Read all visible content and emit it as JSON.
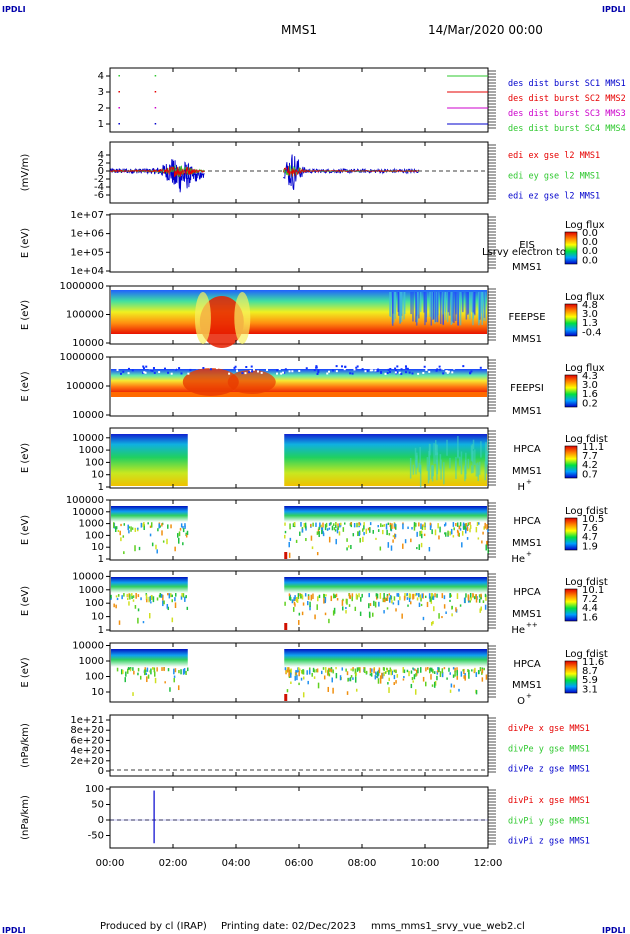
{
  "header": {
    "corner_label": "IPDLI",
    "spacecraft": "MMS1",
    "datetime": "14/Mar/2020 00:00"
  },
  "footer": {
    "corner_label": "IPDLI",
    "produced_by": "Produced by cl (IRAP)",
    "printing_date": "Printing date: 02/Dec/2023",
    "script": "mms_mms1_srvy_vue_web2.cl"
  },
  "colors": {
    "red": "#e60000",
    "green": "#2ec82e",
    "blue": "#0000cc",
    "magenta": "#cc00cc",
    "title_blue": "#0000aa"
  },
  "chart_data": {
    "type": "multi-panel time series and spectrograms",
    "x_axis": {
      "ticks": [
        "00:00",
        "02:00",
        "04:00",
        "06:00",
        "08:00",
        "10:00",
        "12:00"
      ],
      "range_hours": [
        0,
        12
      ]
    },
    "panels": [
      {
        "id": "burst",
        "ylabel": "",
        "yticks": [
          "1",
          "2",
          "3",
          "4"
        ],
        "ylim": [
          0.5,
          4.5
        ],
        "legend": [
          {
            "label": "des dist burst SC1 MMS1",
            "color": "#0000cc",
            "value": 1
          },
          {
            "label": "des dist burst SC2 MMS2",
            "color": "#e60000",
            "value": 3
          },
          {
            "label": "des dist burst SC3 MMS3",
            "color": "#cc00cc",
            "value": 2
          },
          {
            "label": "des dist burst SC4 MMS4",
            "color": "#2ec82e",
            "value": 4
          }
        ],
        "burst_times_hours": [
          0.3,
          1.45
        ],
        "series_tail_from_hours": 10.7
      },
      {
        "id": "edi",
        "ylabel": "(mV/m)",
        "yticks": [
          "-6",
          "-4",
          "-2",
          "0",
          "2",
          "4"
        ],
        "ylim": [
          -6,
          5
        ],
        "legend": [
          {
            "label": "edi ex gse l2 MMS1",
            "color": "#e60000"
          },
          {
            "label": "edi ey gse l2 MMS1",
            "color": "#2ec82e"
          },
          {
            "label": "edi ez gse l2 MMS1",
            "color": "#0000cc"
          }
        ],
        "active_intervals_hours": [
          [
            0,
            3.0
          ],
          [
            5.5,
            9.8
          ]
        ]
      },
      {
        "id": "eis",
        "ylabel": "E (eV)",
        "yticks": [
          "1e+04",
          "1e+05",
          "1e+06",
          "1e+07"
        ],
        "ylim": [
          "1e+04",
          "1e+07"
        ],
        "instrument": [
          "EIS",
          "MMS1"
        ],
        "overlay_text": "Lsrvy electron to",
        "colorbar": {
          "title": "Log flux",
          "ticks": [
            "0.0",
            "0.0",
            "0.0",
            "0.0"
          ]
        }
      },
      {
        "id": "feepse",
        "ylabel": "E (eV)",
        "yticks": [
          "10000",
          "100000",
          "1000000"
        ],
        "instrument": [
          "FEEPSE",
          "MMS1"
        ],
        "colorbar": {
          "title": "Log flux",
          "ticks": [
            "4.8",
            "3.0",
            "1.3",
            "-0.4"
          ]
        }
      },
      {
        "id": "feepsi",
        "ylabel": "E (eV)",
        "yticks": [
          "10000",
          "100000",
          "1000000"
        ],
        "instrument": [
          "FEEPSI",
          "MMS1"
        ],
        "colorbar": {
          "title": "Log flux",
          "ticks": [
            "4.3",
            "3.0",
            "1.6",
            "0.2"
          ]
        }
      },
      {
        "id": "hpca_h",
        "ylabel": "E (eV)",
        "yticks": [
          "1",
          "10",
          "100",
          "1000",
          "10000"
        ],
        "instrument": [
          "HPCA",
          "MMS1",
          "H",
          "+"
        ],
        "colorbar": {
          "title": "Log fdist",
          "ticks": [
            "11.1",
            "7.7",
            "4.2",
            "0.7"
          ]
        },
        "data_gap_hours": [
          2.5,
          5.5
        ]
      },
      {
        "id": "hpca_he",
        "ylabel": "E (eV)",
        "yticks": [
          "1",
          "10",
          "100",
          "1000",
          "10000",
          "100000"
        ],
        "instrument": [
          "HPCA",
          "MMS1",
          "He",
          "+"
        ],
        "colorbar": {
          "title": "Log fdist",
          "ticks": [
            "10.5",
            "7.6",
            "4.7",
            "1.9"
          ]
        },
        "data_gap_hours": [
          2.5,
          5.5
        ]
      },
      {
        "id": "hpca_hepp",
        "ylabel": "E (eV)",
        "yticks": [
          "1",
          "10",
          "100",
          "1000",
          "10000"
        ],
        "instrument": [
          "HPCA",
          "MMS1",
          "He",
          "++"
        ],
        "colorbar": {
          "title": "Log fdist",
          "ticks": [
            "10.1",
            "7.2",
            "4.4",
            "1.6"
          ]
        },
        "data_gap_hours": [
          2.5,
          5.5
        ]
      },
      {
        "id": "hpca_o",
        "ylabel": "E (eV)",
        "yticks": [
          "10",
          "100",
          "1000",
          "10000"
        ],
        "instrument": [
          "HPCA",
          "MMS1",
          "O",
          "+"
        ],
        "colorbar": {
          "title": "Log fdist",
          "ticks": [
            "11.6",
            "8.7",
            "5.9",
            "3.1"
          ]
        },
        "data_gap_hours": [
          2.5,
          5.5
        ]
      },
      {
        "id": "divpe",
        "ylabel": "(nPa/km)",
        "yticks": [
          "0",
          "2e+20",
          "4e+20",
          "6e+20",
          "8e+20",
          "1e+21"
        ],
        "ylim": [
          0,
          1e+21
        ],
        "legend": [
          {
            "label": "divPe x gse MMS1",
            "color": "#e60000"
          },
          {
            "label": "divPe y gse MMS1",
            "color": "#2ec82e"
          },
          {
            "label": "divPe z gse MMS1",
            "color": "#0000cc"
          }
        ]
      },
      {
        "id": "divpi",
        "ylabel": "(nPa/km)",
        "yticks": [
          "-50",
          "0",
          "50",
          "100"
        ],
        "ylim": [
          -80,
          100
        ],
        "legend": [
          {
            "label": "divPi x gse MMS1",
            "color": "#e60000"
          },
          {
            "label": "divPi y gse MMS1",
            "color": "#2ec82e"
          },
          {
            "label": "divPi z gse MMS1",
            "color": "#0000cc"
          }
        ],
        "spike": {
          "time_hours": 1.4,
          "min": -75,
          "max": 95
        }
      }
    ]
  }
}
